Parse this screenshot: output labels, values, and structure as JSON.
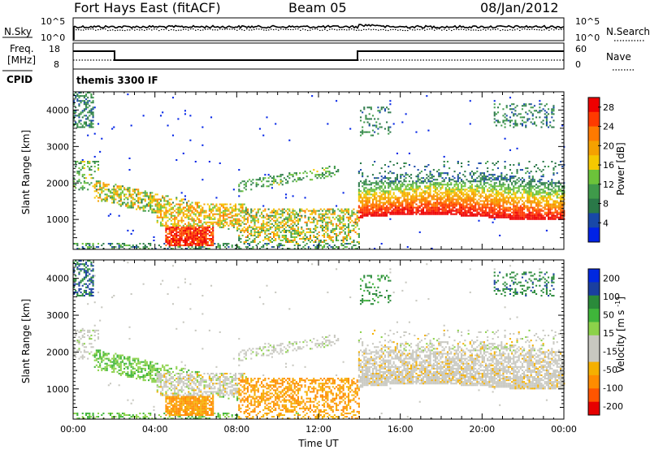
{
  "header": {
    "station": "Fort Hays East (fitACF)",
    "beam": "Beam 05",
    "date": "08/Jan/2012"
  },
  "panels": {
    "nsky": {
      "left_label": "N.Sky",
      "right_label": "N.Search",
      "left_ticks": [
        "10^5",
        "10^0"
      ],
      "right_ticks": [
        "10^5",
        "10^0"
      ]
    },
    "freq": {
      "left_label_line1": "Freq.",
      "left_label_line2": "[MHz]",
      "right_label": "Nave",
      "left_ticks": [
        "18",
        "8"
      ],
      "right_ticks": [
        "60",
        "0"
      ]
    },
    "cpid": {
      "label": "CPID",
      "program": "themis 3300 IF"
    }
  },
  "colors": {
    "power_scale": [
      "#0022e6",
      "#1848a8",
      "#2a7848",
      "#3f9a4a",
      "#6cc33a",
      "#f5c800",
      "#f5a100",
      "#ff7a00",
      "#ff3a00",
      "#ee0000"
    ],
    "velocity_scale": [
      "#e60000",
      "#ff5500",
      "#ff8c00",
      "#f5b000",
      "#c8c8c0",
      "#c8c8c0",
      "#8cd24a",
      "#3fb53a",
      "#2a8a3a",
      "#1a3fa0",
      "#0028e0"
    ]
  },
  "chart_data": [
    {
      "type": "heatmap",
      "name": "power-panel",
      "ylabel": "Slant Range [km]",
      "xlabel": "",
      "yticks": [
        "1000",
        "2000",
        "3000",
        "4000"
      ],
      "xticks": [],
      "ylim": [
        180,
        4500
      ],
      "xlim": [
        "00:00",
        "24:00"
      ],
      "colorbar_label": "Power [dB]",
      "colorbar_ticks": [
        "4",
        "8",
        "12",
        "16",
        "20",
        "24",
        "28"
      ],
      "colorbar_range": [
        0,
        30
      ]
    },
    {
      "type": "heatmap",
      "name": "velocity-panel",
      "ylabel": "Slant Range [km]",
      "xlabel": "Time UT",
      "yticks": [
        "1000",
        "2000",
        "3000",
        "4000"
      ],
      "xticks": [
        "00:00",
        "04:00",
        "08:00",
        "12:00",
        "16:00",
        "20:00",
        "00:00"
      ],
      "ylim": [
        180,
        4500
      ],
      "xlim": [
        "00:00",
        "24:00"
      ],
      "colorbar_label": "Velocity [m s^-1]",
      "colorbar_ticks": [
        "200",
        "100",
        "50",
        "15",
        "-15",
        "-50",
        "-100",
        "-200"
      ],
      "colorbar_range": [
        -250,
        250
      ]
    }
  ]
}
